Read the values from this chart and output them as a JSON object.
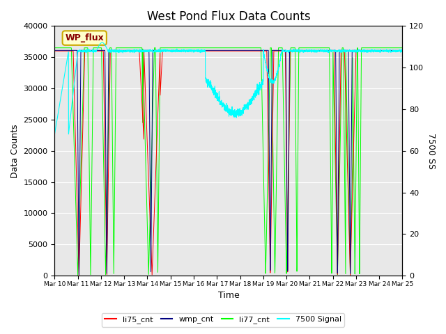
{
  "title": "West Pond Flux Data Counts",
  "ylabel_left": "Data Counts",
  "ylabel_right": "7500 SS",
  "xlabel": "Time",
  "ylim_left": [
    0,
    40000
  ],
  "ylim_right": [
    0,
    120
  ],
  "yticks_left": [
    0,
    5000,
    10000,
    15000,
    20000,
    25000,
    30000,
    35000,
    40000
  ],
  "yticks_right": [
    0,
    20,
    40,
    60,
    80,
    100,
    120
  ],
  "xtick_labels": [
    "Mar 10",
    "Mar 11",
    "Mar 12",
    "Mar 13",
    "Mar 14",
    "Mar 15",
    "Mar 16",
    "Mar 17",
    "Mar 18",
    "Mar 19",
    "Mar 20",
    "Mar 21",
    "Mar 22",
    "Mar 23",
    "Mar 24",
    "Mar 25"
  ],
  "legend_entries": [
    "li75_cnt",
    "wmp_cnt",
    "li77_cnt",
    "7500 Signal"
  ],
  "legend_colors": [
    "red",
    "navy",
    "lime",
    "cyan"
  ],
  "annotation_text": "WP_flux",
  "annotation_color": "#880000",
  "annotation_bg": "#ffffcc",
  "annotation_edge": "#ccaa00",
  "background_color": "#e8e8e8",
  "title_fontsize": 12,
  "grid_color": "white"
}
